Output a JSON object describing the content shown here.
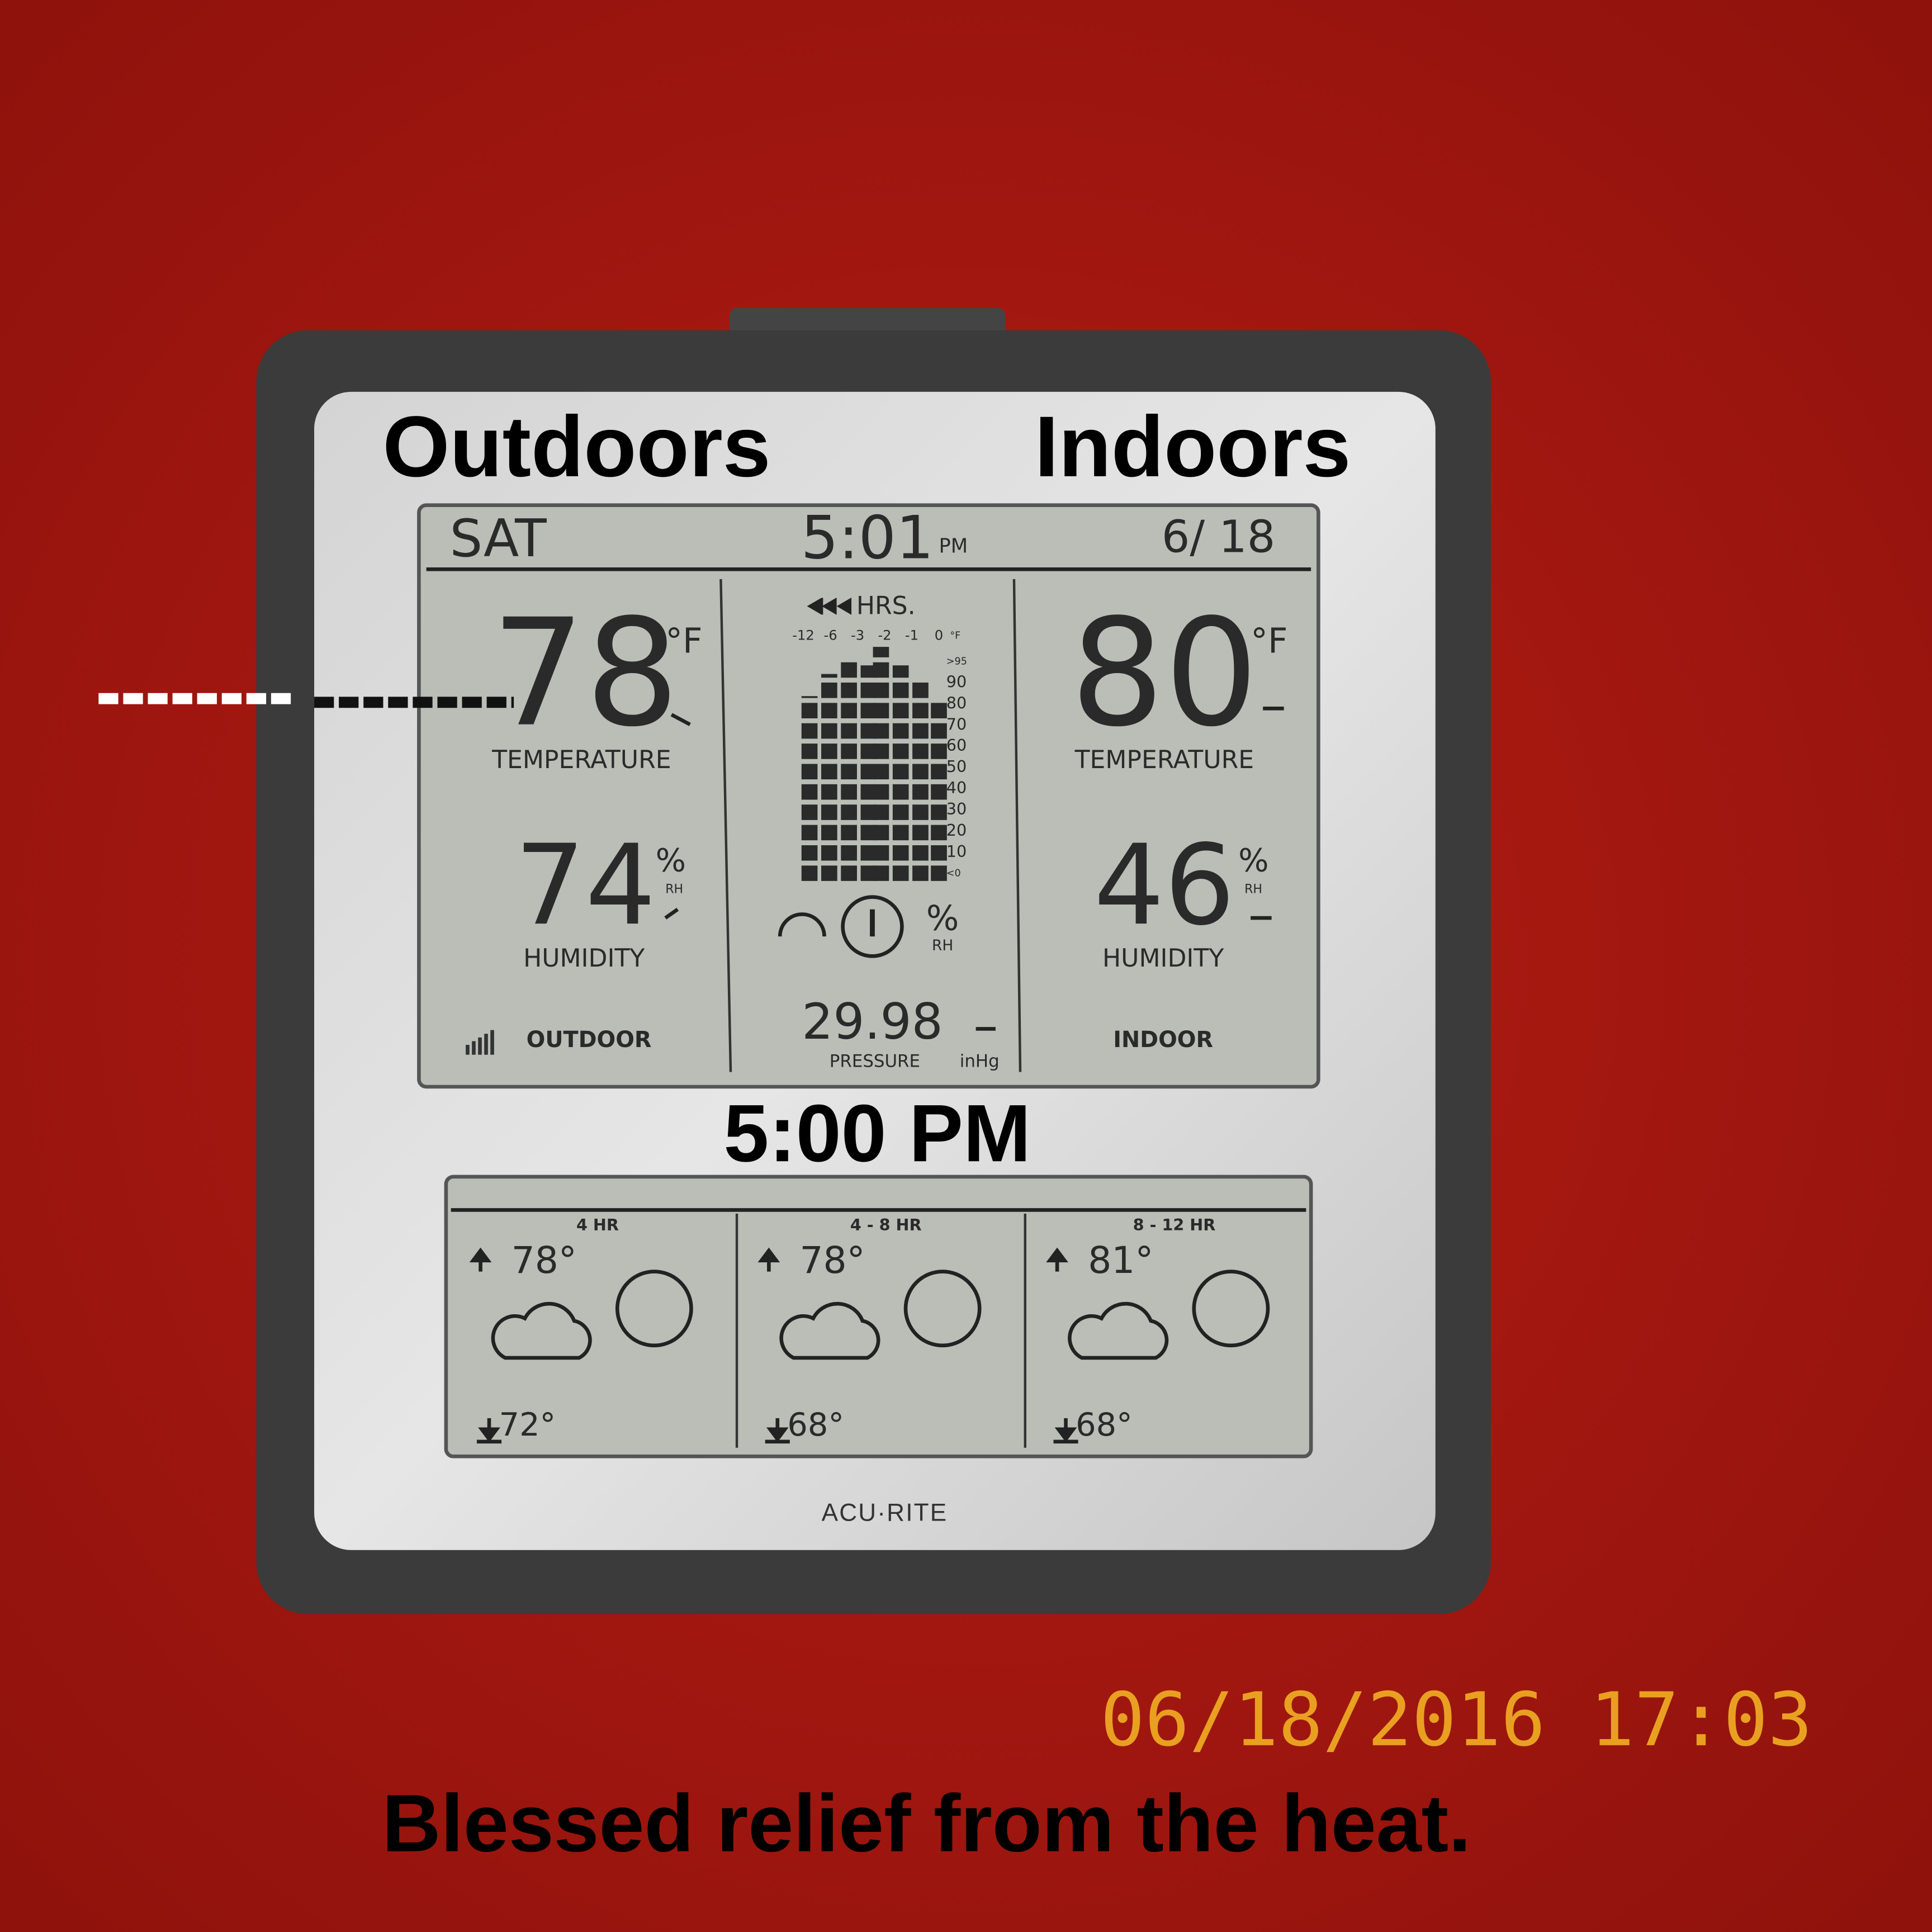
{
  "annotations": {
    "outdoors": "Outdoors",
    "indoors": "Indoors",
    "time": "5:00 PM",
    "caption": "Blessed relief from the heat.",
    "timestamp": "06/18/2016  17:03"
  },
  "display": {
    "day": "SAT",
    "time": "5:01",
    "ampm": "PM",
    "date": "6/ 18",
    "outdoor": {
      "temperature": "78",
      "temperature_unit": "°F",
      "temperature_label": "TEMPERATURE",
      "humidity": "74",
      "humidity_unit": "%",
      "humidity_rh": "RH",
      "humidity_label": "HUMIDITY",
      "label": "OUTDOOR"
    },
    "indoor": {
      "temperature": "80",
      "temperature_unit": "°F",
      "temperature_label": "TEMPERATURE",
      "humidity": "46",
      "humidity_unit": "%",
      "humidity_rh": "RH",
      "humidity_label": "HUMIDITY",
      "label": "INDOOR"
    },
    "history": {
      "label": "HRS.",
      "hours": [
        "-12",
        "-6",
        "-3",
        "-2",
        "-1",
        "0"
      ],
      "unit": "°F",
      "scale": [
        ">95",
        "90",
        "80",
        "70",
        "60",
        "50",
        "40",
        "30",
        "20",
        "10",
        "<0"
      ],
      "percent": "%",
      "rh": "RH"
    },
    "pressure": {
      "value": "29.98",
      "label": "PRESSURE",
      "unit": "inHg"
    }
  },
  "forecast": [
    {
      "period": "4 HR",
      "high": "78°",
      "low": "72°"
    },
    {
      "period": "4 - 8 HR",
      "high": "78°",
      "low": "68°"
    },
    {
      "period": "8 - 12 HR",
      "high": "81°",
      "low": "68°"
    }
  ],
  "brand": "ACU·RITE"
}
